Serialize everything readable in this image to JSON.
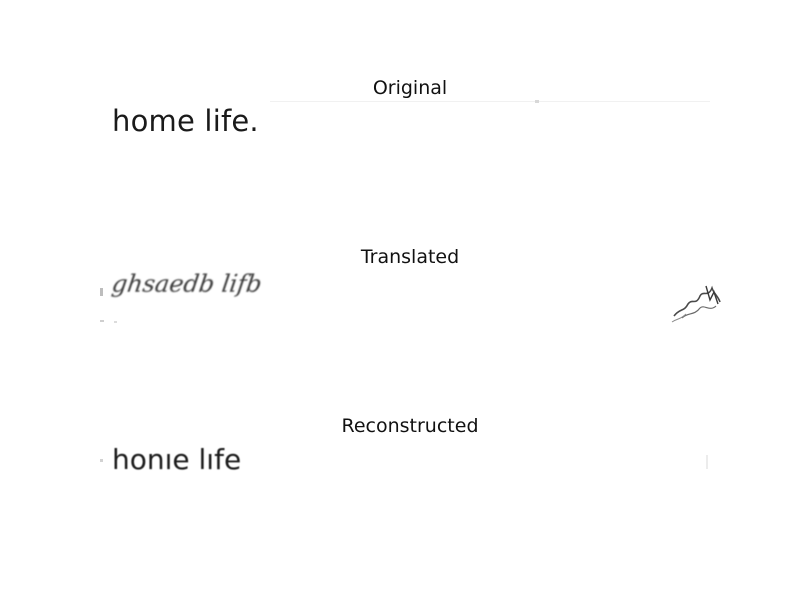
{
  "panels": [
    {
      "title": "Original",
      "text": "home life."
    },
    {
      "title": "Translated",
      "text": "ghsaedb lifb"
    },
    {
      "title": "Reconstructed",
      "text": "honıe lıfe"
    }
  ]
}
